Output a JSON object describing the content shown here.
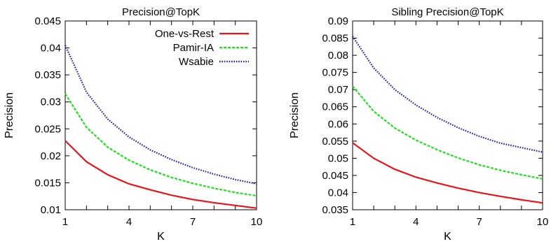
{
  "chart_data": [
    {
      "type": "line",
      "title": "Precision@TopK",
      "xlabel": "K",
      "ylabel": "Precision",
      "x": [
        1,
        2,
        3,
        4,
        5,
        6,
        7,
        8,
        9,
        10
      ],
      "xlim": [
        1,
        10
      ],
      "xticks": [
        "1",
        "4",
        "7",
        "10"
      ],
      "ylim": [
        0.01,
        0.045
      ],
      "yticks": [
        "0.01",
        "0.015",
        "0.02",
        "0.025",
        "0.03",
        "0.035",
        "0.04",
        "0.045"
      ],
      "legend": "top-right",
      "series": [
        {
          "name": "One-vs-Rest",
          "color": "#e8141c",
          "dash": "solid",
          "values": [
            0.0228,
            0.0189,
            0.0165,
            0.0148,
            0.0137,
            0.0127,
            0.0119,
            0.0113,
            0.0108,
            0.0103
          ]
        },
        {
          "name": "Pamir-IA",
          "color": "#22dd22",
          "dash": "dashed",
          "values": [
            0.0315,
            0.0253,
            0.0216,
            0.0192,
            0.0174,
            0.016,
            0.0149,
            0.014,
            0.0132,
            0.0126
          ]
        },
        {
          "name": "Wsabie",
          "color": "#1e1ea8",
          "dash": "dotted",
          "values": [
            0.0405,
            0.0318,
            0.0268,
            0.0235,
            0.0211,
            0.0193,
            0.0178,
            0.0166,
            0.0156,
            0.0148
          ]
        }
      ]
    },
    {
      "type": "line",
      "title": "Sibling Precision@TopK",
      "xlabel": "K",
      "ylabel": "Precision",
      "x": [
        1,
        2,
        3,
        4,
        5,
        6,
        7,
        8,
        9,
        10
      ],
      "xlim": [
        1,
        10
      ],
      "xticks": [
        "1",
        "4",
        "7",
        "10"
      ],
      "ylim": [
        0.035,
        0.09
      ],
      "yticks": [
        "0.035",
        "0.04",
        "0.045",
        "0.05",
        "0.055",
        "0.06",
        "0.065",
        "0.07",
        "0.075",
        "0.08",
        "0.085",
        "0.09"
      ],
      "series": [
        {
          "name": "One-vs-Rest",
          "color": "#e8141c",
          "dash": "solid",
          "values": [
            0.0545,
            0.05,
            0.0468,
            0.0445,
            0.0428,
            0.0413,
            0.04,
            0.0389,
            0.0379,
            0.037
          ]
        },
        {
          "name": "Pamir-IA",
          "color": "#22dd22",
          "dash": "dashed",
          "values": [
            0.071,
            0.0637,
            0.0588,
            0.0553,
            0.0525,
            0.0501,
            0.0481,
            0.0465,
            0.0452,
            0.044
          ]
        },
        {
          "name": "Wsabie",
          "color": "#1e1ea8",
          "dash": "dotted",
          "values": [
            0.0855,
            0.0763,
            0.07,
            0.0655,
            0.0619,
            0.0589,
            0.0564,
            0.0544,
            0.0531,
            0.0518
          ]
        }
      ]
    }
  ]
}
